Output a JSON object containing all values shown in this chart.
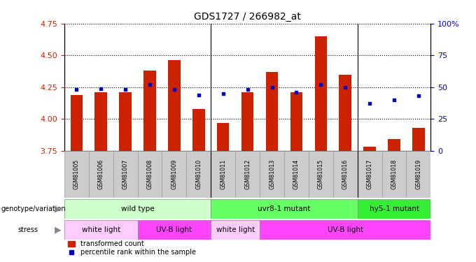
{
  "title": "GDS1727 / 266982_at",
  "samples": [
    "GSM81005",
    "GSM81006",
    "GSM81007",
    "GSM81008",
    "GSM81009",
    "GSM81010",
    "GSM81011",
    "GSM81012",
    "GSM81013",
    "GSM81014",
    "GSM81015",
    "GSM81016",
    "GSM81017",
    "GSM81018",
    "GSM81019"
  ],
  "red_values": [
    4.19,
    4.21,
    4.21,
    4.38,
    4.46,
    4.08,
    3.97,
    4.21,
    4.37,
    4.21,
    4.65,
    4.35,
    3.78,
    3.84,
    3.93
  ],
  "blue_values": [
    48,
    49,
    48,
    52,
    48,
    44,
    45,
    48,
    50,
    46,
    52,
    50,
    37,
    40,
    43
  ],
  "ylim_left": [
    3.75,
    4.75
  ],
  "ylim_right": [
    0,
    100
  ],
  "left_ticks": [
    3.75,
    4.0,
    4.25,
    4.5,
    4.75
  ],
  "right_ticks": [
    0,
    25,
    50,
    75,
    100
  ],
  "right_tick_labels": [
    "0",
    "25",
    "50",
    "75",
    "100%"
  ],
  "bar_color": "#cc2200",
  "dot_color": "#0000cc",
  "genotype_groups": [
    {
      "label": "wild type",
      "start": 0,
      "end": 6,
      "color": "#ccffcc"
    },
    {
      "label": "uvr8-1 mutant",
      "start": 6,
      "end": 12,
      "color": "#66ff66"
    },
    {
      "label": "hy5-1 mutant",
      "start": 12,
      "end": 15,
      "color": "#33ee33"
    }
  ],
  "stress_groups": [
    {
      "label": "white light",
      "start": 0,
      "end": 3,
      "color": "#ffccff"
    },
    {
      "label": "UV-B light",
      "start": 3,
      "end": 6,
      "color": "#ff44ff"
    },
    {
      "label": "white light",
      "start": 6,
      "end": 8,
      "color": "#ffccff"
    },
    {
      "label": "UV-B light",
      "start": 8,
      "end": 15,
      "color": "#ff44ff"
    }
  ],
  "group_separators": [
    5.5,
    11.5
  ],
  "stress_separators": [
    2.5,
    5.5,
    7.5
  ],
  "legend_red": "transformed count",
  "legend_blue": "percentile rank within the sample",
  "genotype_label": "genotype/variation",
  "stress_label": "stress",
  "background_color": "#ffffff",
  "xtick_bg_color": "#cccccc",
  "bar_width": 0.5
}
